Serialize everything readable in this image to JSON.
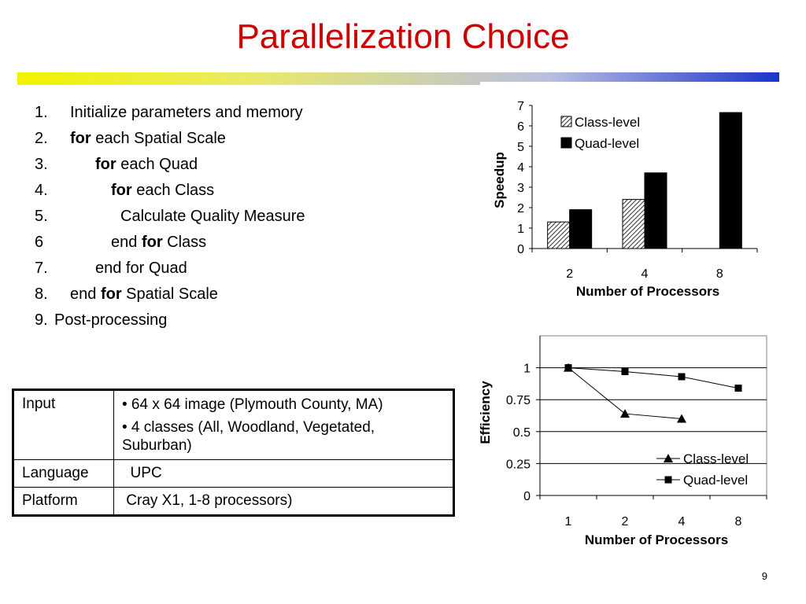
{
  "slide": {
    "title": "Parallelization Choice",
    "page_number": "9"
  },
  "algorithm": [
    {
      "num": "1.",
      "indent": 0,
      "parts": [
        {
          "t": "Initialize parameters and memory",
          "b": false
        }
      ]
    },
    {
      "num": "2.",
      "indent": 0,
      "parts": [
        {
          "t": "for",
          "b": true
        },
        {
          "t": " each Spatial Scale",
          "b": false
        }
      ]
    },
    {
      "num": "3.",
      "indent": 1,
      "parts": [
        {
          "t": "for",
          "b": true
        },
        {
          "t": " each Quad",
          "b": false
        }
      ]
    },
    {
      "num": "4.",
      "indent": 2,
      "parts": [
        {
          "t": "for",
          "b": true
        },
        {
          "t": " each Class",
          "b": false
        }
      ]
    },
    {
      "num": "5.",
      "indent": 3,
      "parts": [
        {
          "t": "Calculate Quality Measure",
          "b": false
        }
      ]
    },
    {
      "num": "6",
      "indent": 2,
      "parts": [
        {
          "t": "end ",
          "b": false
        },
        {
          "t": "for",
          "b": true
        },
        {
          "t": " Class",
          "b": false
        }
      ]
    },
    {
      "num": "7.",
      "indent": 1,
      "parts": [
        {
          "t": "end for Quad",
          "b": false
        }
      ]
    },
    {
      "num": "8.",
      "indent": 0,
      "parts": [
        {
          "t": "end ",
          "b": false
        },
        {
          "t": "for",
          "b": true
        },
        {
          "t": " Spatial Scale",
          "b": false
        }
      ]
    },
    {
      "num": "9.",
      "indent": -1,
      "parts": [
        {
          "t": "Post-processing",
          "b": false
        }
      ]
    }
  ],
  "info_table": {
    "rows": [
      {
        "key": "Input",
        "bullets": [
          "• 64 x 64 image  (Plymouth County, MA)",
          "• 4 classes  (All, Woodland, Vegetated, Suburban)"
        ]
      },
      {
        "key": "Language",
        "value": "  UPC"
      },
      {
        "key": "Platform",
        "value": " Cray X1, 1-8 processors)"
      }
    ]
  },
  "chart_data": [
    {
      "type": "bar",
      "categories": [
        "2",
        "4",
        "8"
      ],
      "series": [
        {
          "name": "Class-level",
          "values": [
            1.3,
            2.4,
            null
          ],
          "fill": "hatched"
        },
        {
          "name": "Quad-level",
          "values": [
            1.9,
            3.7,
            6.65
          ],
          "fill": "#000000"
        }
      ],
      "xlabel": "Number of Processors",
      "ylabel": "Speedup",
      "ylim": [
        0,
        7
      ],
      "yticks": [
        "0",
        "1",
        "2",
        "3",
        "4",
        "5",
        "6",
        "7"
      ],
      "legend": "top-left inside plot",
      "grid": false
    },
    {
      "type": "line",
      "categories": [
        "1",
        "2",
        "4",
        "8"
      ],
      "series": [
        {
          "name": "Class-level",
          "marker": "triangle",
          "values": [
            1.0,
            0.64,
            0.6,
            null
          ]
        },
        {
          "name": "Quad-level",
          "marker": "square",
          "values": [
            1.0,
            0.97,
            0.93,
            0.84
          ]
        }
      ],
      "xlabel": "Number of Processors",
      "ylabel": "Efficiency",
      "ylim": [
        0,
        1.25
      ],
      "yticks": [
        "0",
        "0.25",
        "0.5",
        "0.75",
        "1"
      ],
      "legend": "bottom-right inside plot",
      "grid": true
    }
  ]
}
